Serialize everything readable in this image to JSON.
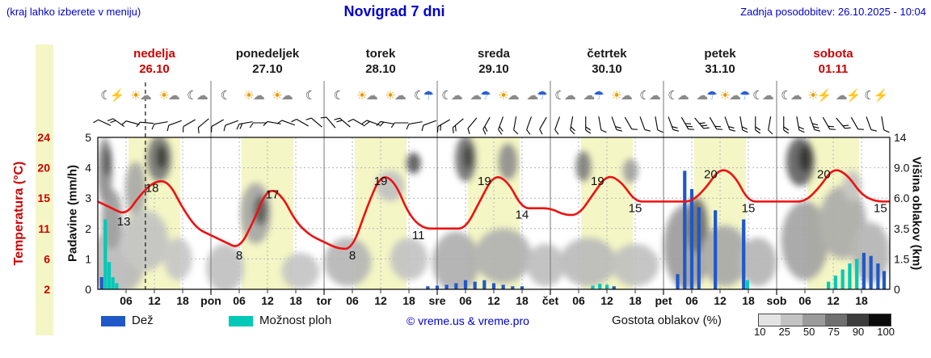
{
  "header": {
    "hint": "(kraj lahko izberete v meniju)",
    "title": "Novigrad 7 dni",
    "updated": "Zadnja posodobitev: 26.10.2025 - 10:04"
  },
  "days": [
    {
      "name": "nedelja",
      "date": "26.10",
      "weekend": true
    },
    {
      "name": "ponedeljek",
      "date": "27.10",
      "weekend": false
    },
    {
      "name": "torek",
      "date": "28.10",
      "weekend": false
    },
    {
      "name": "sreda",
      "date": "29.10",
      "weekend": false
    },
    {
      "name": "četrtek",
      "date": "30.10",
      "weekend": false
    },
    {
      "name": "petek",
      "date": "31.10",
      "weekend": false
    },
    {
      "name": "sobota",
      "date": "01.11",
      "weekend": true
    }
  ],
  "axes": {
    "left_precip": {
      "label": "Padavine (mm/h)",
      "ticks": [
        "5",
        "4",
        "3",
        "2",
        "1",
        "0"
      ]
    },
    "far_left_temp": {
      "label": "Temperatura (°C)",
      "ticks": [
        "24",
        "20",
        "15",
        "11",
        "6",
        "2"
      ]
    },
    "right_cloud": {
      "label": "Višina oblakov (km)",
      "ticks": [
        "14",
        "9.0",
        "6.0",
        "3.5",
        "1.5",
        "0"
      ]
    },
    "x_hour_labels": [
      "06",
      "12",
      "18"
    ],
    "x_day_abbrevs": [
      "pon",
      "tor",
      "sre",
      "čet",
      "pet",
      "sob"
    ]
  },
  "legend": {
    "rain": "Dež",
    "showers": "Možnost ploh",
    "credit": "© vreme.us & vreme.pro",
    "cloud_density": "Gostota oblakov (%)",
    "density_values": [
      "10",
      "25",
      "50",
      "75",
      "90",
      "100"
    ],
    "density_colors": [
      "#e4e4e4",
      "#c3c3c3",
      "#9b9b9b",
      "#6f6f6f",
      "#3d3d3d",
      "#0b0b0b"
    ]
  },
  "colors": {
    "blue_text": "#0000cc",
    "red": "#cc0000",
    "temp_line": "#ee1111",
    "rain": "#2158c8",
    "showers": "#00c9b8",
    "day_band": "#f4f6c5",
    "grid": "#b5b5b5",
    "boundary": "#777777"
  },
  "icon_colors": {
    "☀": "#e39c00",
    "☁": "#8a8a8a",
    "☾": "#3a3a3a",
    "☂": "#2b5fd0",
    "⚡": "#d29b00"
  },
  "chart_data": {
    "type": "line",
    "title": "Novigrad 7 dni",
    "x_unit": "hours since 26.10.2025 00:00",
    "x_range": [
      0,
      168
    ],
    "precip_axis_range": [
      0,
      5
    ],
    "temp_axis_ticks": [
      24,
      20,
      15,
      11,
      6,
      2
    ],
    "cloud_axis_ticks_km": [
      "14",
      "9.0",
      "6.0",
      "3.5",
      "1.5",
      "0"
    ],
    "current_time_hour": 10.1,
    "day_band_hours": [
      6.5,
      17.5
    ],
    "temperature": {
      "x": [
        0,
        3,
        6,
        9,
        12,
        15,
        18,
        21,
        24,
        27,
        30,
        33,
        36,
        39,
        42,
        45,
        48,
        51,
        54,
        57,
        60,
        63,
        66,
        69,
        72,
        75,
        78,
        81,
        84,
        87,
        90,
        93,
        96,
        99,
        102,
        105,
        108,
        111,
        114,
        117,
        120,
        123,
        126,
        129,
        132,
        135,
        138,
        141,
        144,
        147,
        150,
        153,
        156,
        159,
        162,
        165,
        168
      ],
      "values": [
        15,
        14,
        13,
        16,
        18,
        18,
        14,
        11,
        10,
        9,
        8,
        12,
        17,
        16,
        12,
        10,
        9,
        8,
        8,
        14,
        19,
        18,
        13,
        11,
        11,
        11,
        11,
        15,
        19,
        18,
        14,
        14,
        14,
        13,
        13,
        16,
        19,
        18,
        15,
        15,
        15,
        15,
        15,
        17,
        20,
        19,
        15,
        15,
        15,
        15,
        15,
        17,
        20,
        19,
        16,
        15,
        15
      ]
    },
    "temp_point_labels": [
      {
        "x": 5.5,
        "t": 13
      },
      {
        "x": 11.5,
        "t": 18
      },
      {
        "x": 30,
        "t": 8
      },
      {
        "x": 37,
        "t": 17
      },
      {
        "x": 54,
        "t": 8
      },
      {
        "x": 60,
        "t": 19
      },
      {
        "x": 68,
        "t": 11
      },
      {
        "x": 82,
        "t": 19
      },
      {
        "x": 90,
        "t": 14
      },
      {
        "x": 106,
        "t": 19
      },
      {
        "x": 114,
        "t": 15
      },
      {
        "x": 130,
        "t": 20
      },
      {
        "x": 138,
        "t": 15
      },
      {
        "x": 154,
        "t": 20
      },
      {
        "x": 166,
        "t": 15
      }
    ],
    "precip_bars": [
      {
        "x": 0.8,
        "h": 0.4,
        "k": "r"
      },
      {
        "x": 1.6,
        "h": 2.3,
        "k": "s"
      },
      {
        "x": 2.4,
        "h": 0.9,
        "k": "s"
      },
      {
        "x": 3.2,
        "h": 0.4,
        "k": "s"
      },
      {
        "x": 4.0,
        "h": 0.2,
        "k": "s"
      },
      {
        "x": 70,
        "h": 0.1,
        "k": "r"
      },
      {
        "x": 72,
        "h": 0.12,
        "k": "r"
      },
      {
        "x": 74,
        "h": 0.15,
        "k": "r"
      },
      {
        "x": 76,
        "h": 0.2,
        "k": "r"
      },
      {
        "x": 78,
        "h": 0.3,
        "k": "r"
      },
      {
        "x": 80,
        "h": 0.25,
        "k": "r"
      },
      {
        "x": 82,
        "h": 0.3,
        "k": "r"
      },
      {
        "x": 84,
        "h": 0.2,
        "k": "r"
      },
      {
        "x": 86,
        "h": 0.15,
        "k": "r"
      },
      {
        "x": 88,
        "h": 0.1,
        "k": "r"
      },
      {
        "x": 90,
        "h": 0.1,
        "k": "r"
      },
      {
        "x": 105,
        "h": 0.12,
        "k": "s"
      },
      {
        "x": 106.5,
        "h": 0.18,
        "k": "s"
      },
      {
        "x": 108,
        "h": 0.15,
        "k": "s"
      },
      {
        "x": 109.5,
        "h": 0.1,
        "k": "r"
      },
      {
        "x": 123,
        "h": 0.5,
        "k": "r"
      },
      {
        "x": 124.5,
        "h": 3.9,
        "k": "r"
      },
      {
        "x": 126,
        "h": 3.3,
        "k": "r"
      },
      {
        "x": 127.5,
        "h": 2.7,
        "k": "r"
      },
      {
        "x": 131,
        "h": 2.6,
        "k": "r"
      },
      {
        "x": 137,
        "h": 2.3,
        "k": "r"
      },
      {
        "x": 137.8,
        "h": 0.3,
        "k": "s"
      },
      {
        "x": 155,
        "h": 0.25,
        "k": "s"
      },
      {
        "x": 156.5,
        "h": 0.45,
        "k": "s"
      },
      {
        "x": 158,
        "h": 0.65,
        "k": "s"
      },
      {
        "x": 159.5,
        "h": 0.85,
        "k": "s"
      },
      {
        "x": 161,
        "h": 1.0,
        "k": "s"
      },
      {
        "x": 162.5,
        "h": 1.2,
        "k": "r"
      },
      {
        "x": 164,
        "h": 1.1,
        "k": "r"
      },
      {
        "x": 165.5,
        "h": 0.85,
        "k": "r"
      },
      {
        "x": 166.8,
        "h": 0.6,
        "k": "r"
      }
    ],
    "cloud_blobs": [
      {
        "x": 4,
        "y": 0.9,
        "rx": 6,
        "ry": 1.1,
        "c": "#b9b9b9"
      },
      {
        "x": 3,
        "y": 2.3,
        "rx": 2.2,
        "ry": 1.0,
        "c": "#9a9a9a"
      },
      {
        "x": 1.5,
        "y": 3.9,
        "rx": 1.6,
        "ry": 1.1,
        "c": "#8b8b8b"
      },
      {
        "x": 2,
        "y": 4.2,
        "rx": 0.9,
        "ry": 0.5,
        "c": "#4a4a4a"
      },
      {
        "x": 8,
        "y": 3.3,
        "rx": 2.2,
        "ry": 0.9,
        "c": "#a8a8a8"
      },
      {
        "x": 13,
        "y": 4.3,
        "rx": 2.6,
        "ry": 0.75,
        "c": "#777777"
      },
      {
        "x": 13.5,
        "y": 4.35,
        "rx": 1.2,
        "ry": 0.4,
        "c": "#2f2f2f"
      },
      {
        "x": 10,
        "y": 1.6,
        "rx": 5,
        "ry": 1.0,
        "c": "#c2c2c2"
      },
      {
        "x": 17,
        "y": 1.0,
        "rx": 3,
        "ry": 0.7,
        "c": "#c6c6c6"
      },
      {
        "x": 27,
        "y": 0.7,
        "rx": 4,
        "ry": 0.8,
        "c": "#bfbfbf"
      },
      {
        "x": 33.5,
        "y": 2.5,
        "rx": 3.2,
        "ry": 1.0,
        "c": "#a5a5a5"
      },
      {
        "x": 34.5,
        "y": 2.6,
        "rx": 1.5,
        "ry": 0.5,
        "c": "#555555"
      },
      {
        "x": 43,
        "y": 0.6,
        "rx": 4,
        "ry": 0.6,
        "c": "#c4c4c4"
      },
      {
        "x": 53,
        "y": 0.9,
        "rx": 5,
        "ry": 0.8,
        "c": "#b5b5b5"
      },
      {
        "x": 62,
        "y": 3.4,
        "rx": 3,
        "ry": 0.5,
        "c": "#c0c0c0"
      },
      {
        "x": 67,
        "y": 4.15,
        "rx": 1.5,
        "ry": 0.35,
        "c": "#575757"
      },
      {
        "x": 66,
        "y": 1.0,
        "rx": 4,
        "ry": 0.7,
        "c": "#c2c2c2"
      },
      {
        "x": 76,
        "y": 0.9,
        "rx": 5,
        "ry": 1.0,
        "c": "#adadad"
      },
      {
        "x": 78,
        "y": 4.3,
        "rx": 2.2,
        "ry": 0.75,
        "c": "#6e6e6e"
      },
      {
        "x": 78.5,
        "y": 4.35,
        "rx": 1.0,
        "ry": 0.4,
        "c": "#333333"
      },
      {
        "x": 87,
        "y": 4.2,
        "rx": 2,
        "ry": 0.6,
        "c": "#8d8d8d"
      },
      {
        "x": 86,
        "y": 1.1,
        "rx": 6,
        "ry": 0.9,
        "c": "#b0b0b0"
      },
      {
        "x": 95,
        "y": 0.8,
        "rx": 4,
        "ry": 0.7,
        "c": "#bdbdbd"
      },
      {
        "x": 103,
        "y": 4.05,
        "rx": 1.6,
        "ry": 0.5,
        "c": "#7d7d7d"
      },
      {
        "x": 104,
        "y": 0.9,
        "rx": 6,
        "ry": 0.8,
        "c": "#bababa"
      },
      {
        "x": 113,
        "y": 3.9,
        "rx": 1.6,
        "ry": 0.4,
        "c": "#9f9f9f"
      },
      {
        "x": 114,
        "y": 0.8,
        "rx": 5,
        "ry": 0.7,
        "c": "#c0c0c0"
      },
      {
        "x": 125,
        "y": 1.4,
        "rx": 5,
        "ry": 1.4,
        "c": "#9b9b9b"
      },
      {
        "x": 127,
        "y": 2.1,
        "rx": 2.4,
        "ry": 0.9,
        "c": "#6b6b6b"
      },
      {
        "x": 133,
        "y": 1.1,
        "rx": 5,
        "ry": 1.0,
        "c": "#a8a8a8"
      },
      {
        "x": 140,
        "y": 0.9,
        "rx": 4,
        "ry": 0.8,
        "c": "#b4b4b4"
      },
      {
        "x": 149,
        "y": 4.2,
        "rx": 3,
        "ry": 0.8,
        "c": "#5e5e5e"
      },
      {
        "x": 150,
        "y": 4.3,
        "rx": 1.5,
        "ry": 0.45,
        "c": "#262626"
      },
      {
        "x": 150,
        "y": 1.6,
        "rx": 5,
        "ry": 1.3,
        "c": "#a2a2a2"
      },
      {
        "x": 158,
        "y": 2.2,
        "rx": 5,
        "ry": 1.2,
        "c": "#ababab"
      },
      {
        "x": 164,
        "y": 1.2,
        "rx": 4,
        "ry": 1.0,
        "c": "#b3b3b3"
      },
      {
        "x": 160,
        "y": 3.4,
        "rx": 2,
        "ry": 0.5,
        "c": "#c2c2c2"
      }
    ],
    "weather_icons": [
      "☾⚡",
      "☀☁",
      "☀☁",
      "☾☁",
      "☾",
      "☀☁",
      "☀☁",
      "☾",
      "☾",
      "☀☁",
      "☀☁",
      "☾☂",
      "☾☁",
      "☁☂",
      "☀☁",
      "☁☂",
      "☾☁",
      "☁☂",
      "☀☁",
      "☾☁",
      "☾☁",
      "☁☂",
      "☀☁☂",
      "☾☁",
      "☾☁",
      "☀⚡",
      "☁⚡",
      "☾⚡"
    ],
    "wind_barbs": {
      "start_hour": 1.5,
      "step_hours": 3,
      "angles": [
        205,
        215,
        195,
        185,
        170,
        160,
        150,
        140,
        150,
        160,
        170,
        180,
        190,
        200,
        210,
        220,
        230,
        220,
        210,
        200,
        190,
        180,
        170,
        160,
        150,
        140,
        130,
        120,
        110,
        100,
        110,
        120,
        110,
        100,
        90,
        80,
        70,
        60,
        70,
        80,
        70,
        60,
        50,
        60,
        70,
        80,
        90,
        100,
        90,
        80,
        70,
        60,
        50,
        60,
        70,
        80
      ],
      "ticks": [
        1,
        2,
        1,
        1,
        1,
        1,
        1,
        1,
        1,
        1,
        2,
        1,
        1,
        1,
        1,
        1,
        1,
        2,
        1,
        2,
        2,
        1,
        1,
        1,
        2,
        2,
        1,
        2,
        2,
        1,
        1,
        1,
        1,
        2,
        2,
        1,
        2,
        1,
        1,
        1,
        2,
        3,
        3,
        2,
        2,
        2,
        2,
        1,
        2,
        2,
        3,
        2,
        2,
        1,
        1,
        1
      ]
    }
  }
}
